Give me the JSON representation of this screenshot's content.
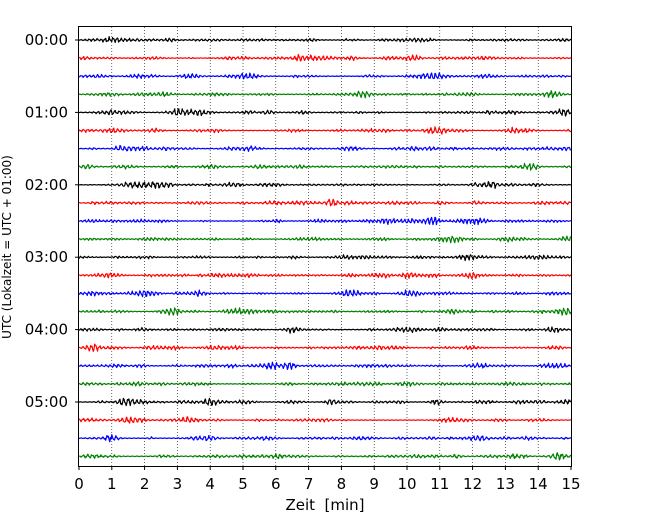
{
  "chart_data": {
    "type": "line",
    "subtype": "helicorder (seismogram drum plot)",
    "xlabel": "Zeit  [min]",
    "ylabel": "UTC (Lokalzeit = UTC + 01:00)",
    "xlim": [
      0,
      15
    ],
    "x_ticks": [
      "0",
      "1",
      "2",
      "3",
      "4",
      "5",
      "6",
      "7",
      "8",
      "9",
      "10",
      "11",
      "12",
      "13",
      "14",
      "15"
    ],
    "x_grid": "dotted vertical lines at each minute",
    "y_ticks": [
      {
        "label": "00:00",
        "trace_index": 0
      },
      {
        "label": "01:00",
        "trace_index": 4
      },
      {
        "label": "02:00",
        "trace_index": 8
      },
      {
        "label": "03:00",
        "trace_index": 12
      },
      {
        "label": "04:00",
        "trace_index": 16
      },
      {
        "label": "05:00",
        "trace_index": 20
      }
    ],
    "trace_minutes": 15,
    "trace_count": 24,
    "color_cycle": [
      "#000000",
      "#ff0000",
      "#0000ff",
      "#008000"
    ],
    "bursts": [
      {
        "trace": 1,
        "minute": 6.7,
        "amp": 1.6
      },
      {
        "trace": 3,
        "minute": 8.6,
        "amp": 1.3
      },
      {
        "trace": 4,
        "minute": 14.8,
        "amp": 1.4
      },
      {
        "trace": 8,
        "minute": 12.6,
        "amp": 1.6
      },
      {
        "trace": 9,
        "minute": 7.7,
        "amp": 1.5
      },
      {
        "trace": 10,
        "minute": 10.8,
        "amp": 1.4
      },
      {
        "trace": 11,
        "minute": 14.9,
        "amp": 1.4
      },
      {
        "trace": 13,
        "minute": 12.0,
        "amp": 1.5
      },
      {
        "trace": 13,
        "minute": 10.0,
        "amp": 1.2
      },
      {
        "trace": 14,
        "minute": 8.2,
        "amp": 1.4
      },
      {
        "trace": 14,
        "minute": 2.0,
        "amp": 1.3
      },
      {
        "trace": 15,
        "minute": 2.8,
        "amp": 1.2
      },
      {
        "trace": 15,
        "minute": 14.9,
        "amp": 1.3
      },
      {
        "trace": 16,
        "minute": 6.5,
        "amp": 1.3
      },
      {
        "trace": 17,
        "minute": 0.4,
        "amp": 1.6
      },
      {
        "trace": 18,
        "minute": 5.9,
        "amp": 1.3
      },
      {
        "trace": 18,
        "minute": 6.4,
        "amp": 1.6
      },
      {
        "trace": 20,
        "minute": 4.0,
        "amp": 1.5
      },
      {
        "trace": 20,
        "minute": 7.7,
        "amp": 1.6
      },
      {
        "trace": 20,
        "minute": 10.9,
        "amp": 1.4
      },
      {
        "trace": 21,
        "minute": 3.3,
        "amp": 1.3
      },
      {
        "trace": 22,
        "minute": 1.0,
        "amp": 1.4
      },
      {
        "trace": 23,
        "minute": 14.6,
        "amp": 1.4
      }
    ]
  }
}
